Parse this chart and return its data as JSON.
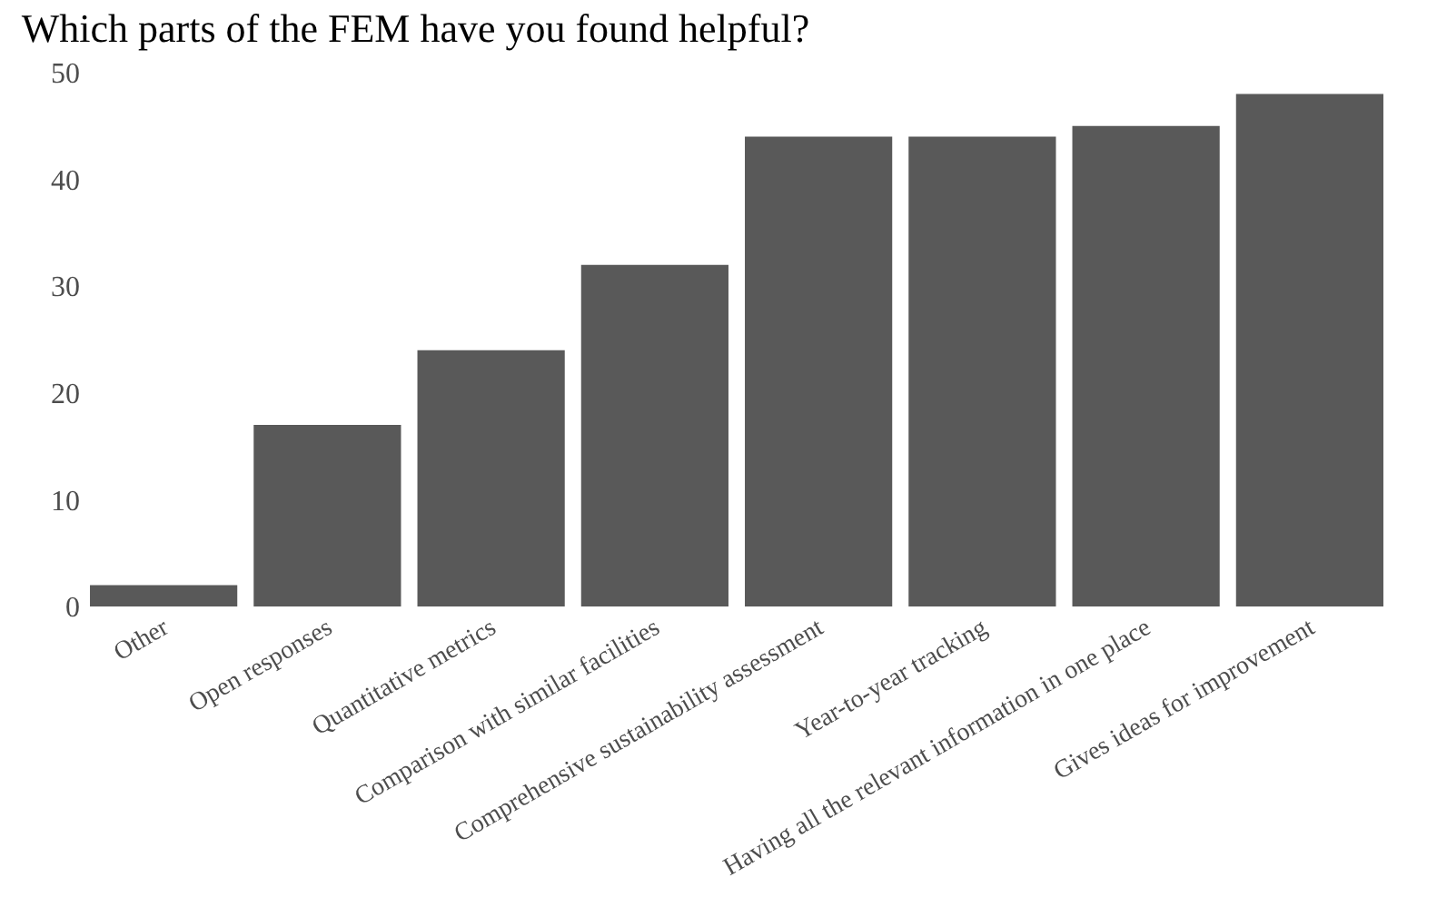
{
  "chart_data": {
    "type": "bar",
    "title": "Which parts of the FEM have you found helpful?",
    "categories": [
      "Other",
      "Open responses",
      "Quantitative metrics",
      "Comparison with similar facilities",
      "Comprehensive sustainability assessment",
      "Year-to-year tracking",
      "Having all the relevant information in one place",
      "Gives ideas for improvement"
    ],
    "values": [
      2,
      17,
      24,
      32,
      44,
      44,
      45,
      48
    ],
    "color": "#595959",
    "ylim": [
      0,
      50
    ],
    "yticks": [
      0,
      10,
      20,
      30,
      40,
      50
    ]
  }
}
